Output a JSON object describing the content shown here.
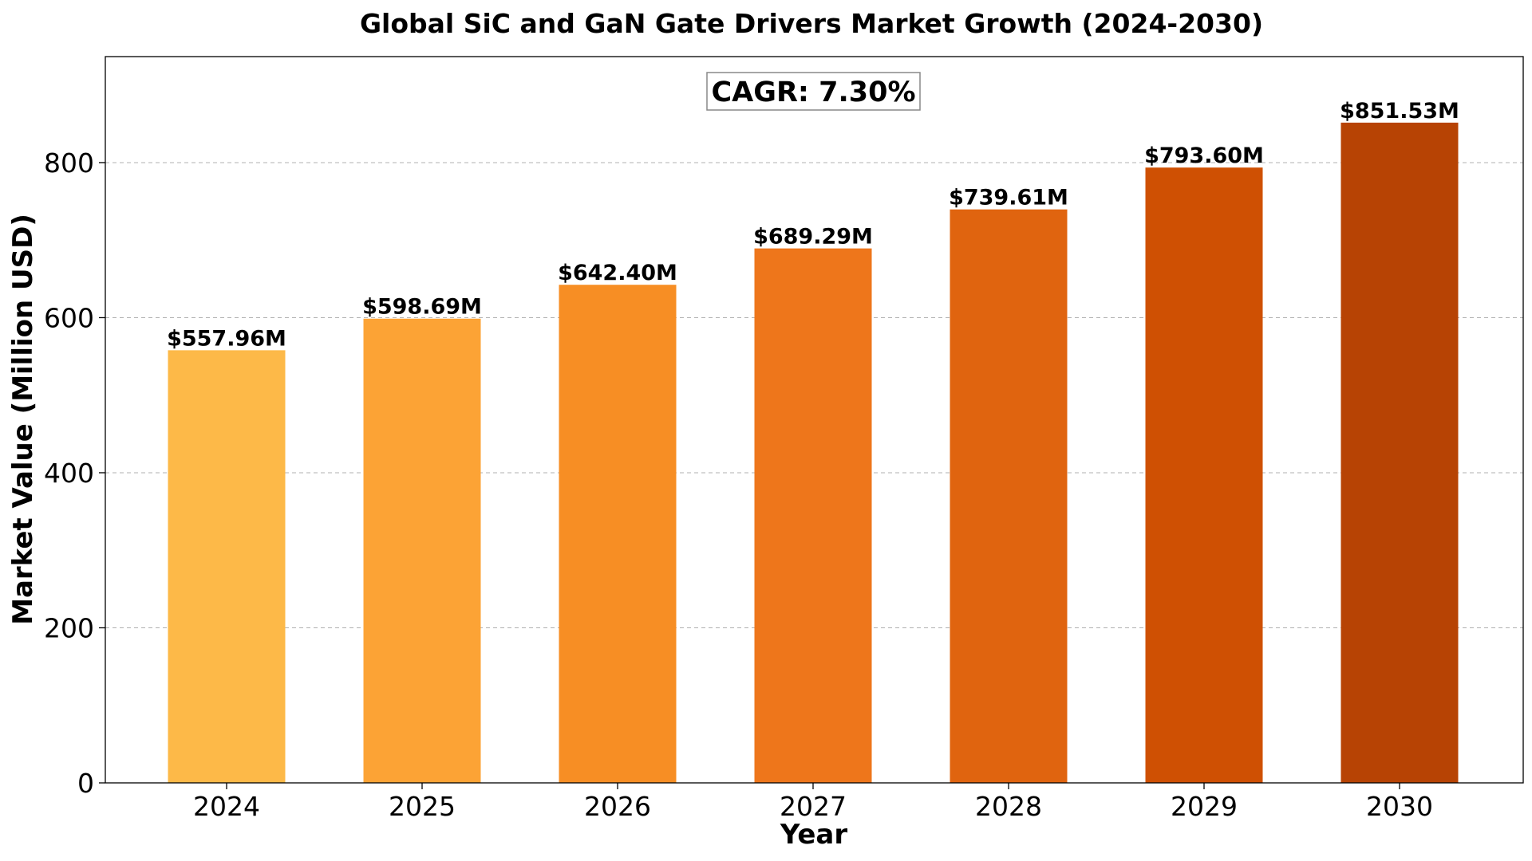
{
  "chart_data": {
    "type": "bar",
    "title": "Global SiC and GaN Gate Drivers Market Growth (2024-2030)",
    "xlabel": "Year",
    "ylabel": "Market Value (Million USD)",
    "categories": [
      "2024",
      "2025",
      "2026",
      "2027",
      "2028",
      "2029",
      "2030"
    ],
    "values": [
      557.96,
      598.69,
      642.4,
      689.29,
      739.61,
      793.6,
      851.53
    ],
    "data_labels": [
      "$557.96M",
      "$598.69M",
      "$642.40M",
      "$689.29M",
      "$739.61M",
      "$793.60M",
      "$851.53M"
    ],
    "colors": [
      "#FDB948",
      "#FCA335",
      "#F78E24",
      "#EE761B",
      "#E0640F",
      "#CF5003",
      "#B74304"
    ],
    "ylim": [
      0,
      936.7
    ],
    "yticks": [
      0,
      200,
      400,
      600,
      800
    ],
    "grid": true,
    "grid_axis": "y",
    "annotation": "CAGR: 7.30%"
  }
}
